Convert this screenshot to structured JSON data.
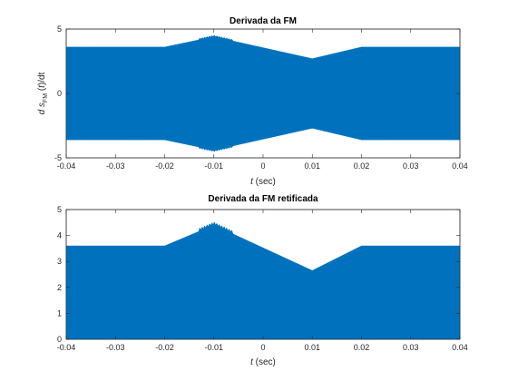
{
  "colors": {
    "signal": "#0072bd",
    "axes": "#262626",
    "background": "#ffffff"
  },
  "chart_data": [
    {
      "type": "area",
      "title": "Derivada da FM",
      "xlabel": {
        "italic": "t",
        "rest": " (sec)"
      },
      "ylabel": {
        "d": "d",
        "s": "s",
        "sub": "FM",
        "t_open": "(",
        "t": "t",
        "t_close": ")/dt"
      },
      "xlim": [
        -0.04,
        0.04
      ],
      "ylim": [
        -5,
        5
      ],
      "xticks": [
        -0.04,
        -0.03,
        -0.02,
        -0.01,
        0,
        0.01,
        0.02,
        0.03,
        0.04
      ],
      "xtick_labels": [
        "-0.04",
        "-0.03",
        "-0.02",
        "-0.01",
        "0",
        "0.01",
        "0.02",
        "0.03",
        "0.04"
      ],
      "yticks": [
        -5,
        0,
        5
      ],
      "ytick_labels": [
        "-5",
        "0",
        "5"
      ],
      "grid": false,
      "series": [
        {
          "envelope_upper": {
            "x": [
              -0.04,
              -0.02,
              -0.01,
              0.01,
              0.02,
              0.04
            ],
            "y": [
              3.6,
              3.6,
              4.4,
              2.7,
              3.6,
              3.6
            ]
          },
          "envelope_lower": {
            "x": [
              -0.04,
              -0.02,
              -0.01,
              0.01,
              0.02,
              0.04
            ],
            "y": [
              -3.6,
              -3.6,
              -4.4,
              -2.7,
              -3.6,
              -3.6
            ]
          }
        }
      ]
    },
    {
      "type": "area",
      "title": "Derivada da FM retificada",
      "xlabel": {
        "italic": "t",
        "rest": " (sec)"
      },
      "ylabel": null,
      "xlim": [
        -0.04,
        0.04
      ],
      "ylim": [
        0,
        5
      ],
      "xticks": [
        -0.04,
        -0.03,
        -0.02,
        -0.01,
        0,
        0.01,
        0.02,
        0.03,
        0.04
      ],
      "xtick_labels": [
        "-0.04",
        "-0.03",
        "-0.02",
        "-0.01",
        "0",
        "0.01",
        "0.02",
        "0.03",
        "0.04"
      ],
      "yticks": [
        0,
        1,
        2,
        3,
        4,
        5
      ],
      "ytick_labels": [
        "0",
        "1",
        "2",
        "3",
        "4",
        "5"
      ],
      "grid": false,
      "series": [
        {
          "envelope_upper": {
            "x": [
              -0.04,
              -0.02,
              -0.01,
              0.01,
              0.02,
              0.04
            ],
            "y": [
              3.6,
              3.6,
              4.4,
              2.65,
              3.6,
              3.6
            ]
          },
          "envelope_lower": {
            "x": [
              -0.04,
              0.04
            ],
            "y": [
              0,
              0
            ]
          }
        }
      ]
    }
  ]
}
